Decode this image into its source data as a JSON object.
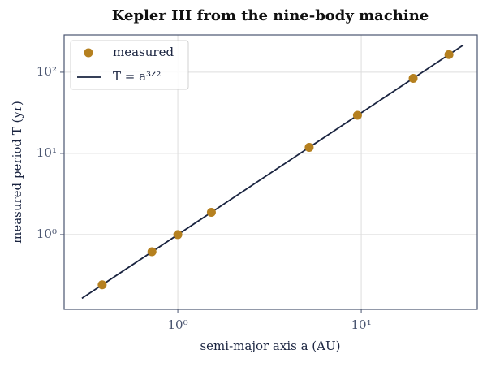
{
  "chart_data": {
    "type": "scatter",
    "title": "Kepler III from the nine-body machine",
    "x_label": "semi-major axis a (AU)",
    "y_label": "measured period T (yr)",
    "xscale": "log",
    "yscale": "log",
    "grid": true,
    "legend": "upper left",
    "xlim": [
      0.24,
      42.9
    ],
    "ylim": [
      0.12,
      288
    ],
    "xticks": [
      {
        "value": 1,
        "label": "10⁰"
      },
      {
        "value": 10,
        "label": "10¹"
      }
    ],
    "yticks": [
      {
        "value": 1,
        "label": "10⁰"
      },
      {
        "value": 10,
        "label": "10¹"
      },
      {
        "value": 100,
        "label": "10²"
      }
    ],
    "series": [
      {
        "name": "measured",
        "mode": "markers",
        "color": "#b5801f",
        "x": [
          0.387,
          0.723,
          1,
          1.524,
          5.203,
          9.537,
          19.19,
          30.07
        ],
        "values": [
          0.241,
          0.615,
          1,
          1.881,
          11.86,
          29.45,
          84.0,
          164.8
        ]
      },
      {
        "name": "T = a³ᐟ²",
        "mode": "line",
        "color": "#1a2440",
        "x": [
          0.3,
          36
        ],
        "values": [
          0.164,
          216
        ]
      }
    ]
  }
}
